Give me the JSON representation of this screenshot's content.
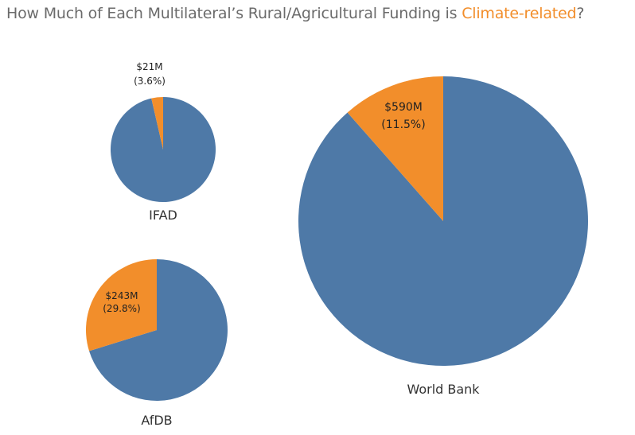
{
  "title": {
    "prefix": "How Much of Each Multilateral’s Rural/Agricultural Funding is ",
    "highlight": "Climate-related",
    "suffix": "?"
  },
  "colors": {
    "climate": "#f28e2b",
    "other": "#4e79a7",
    "title_text": "#6b6b6b",
    "highlight_text": "#f28e2b"
  },
  "chart_data": {
    "type": "pie",
    "title": "How Much of Each Multilateral’s Rural/Agricultural Funding is Climate-related?",
    "pies": [
      {
        "name": "IFAD",
        "climate_value_label": "$21M",
        "climate_pct_label": "(3.6%)",
        "climate_fraction": 0.036
      },
      {
        "name": "AfDB",
        "climate_value_label": "$243M",
        "climate_pct_label": "(29.8%)",
        "climate_fraction": 0.298
      },
      {
        "name": "World Bank",
        "climate_value_label": "$590M",
        "climate_pct_label": "(11.5%)",
        "climate_fraction": 0.115
      }
    ]
  }
}
